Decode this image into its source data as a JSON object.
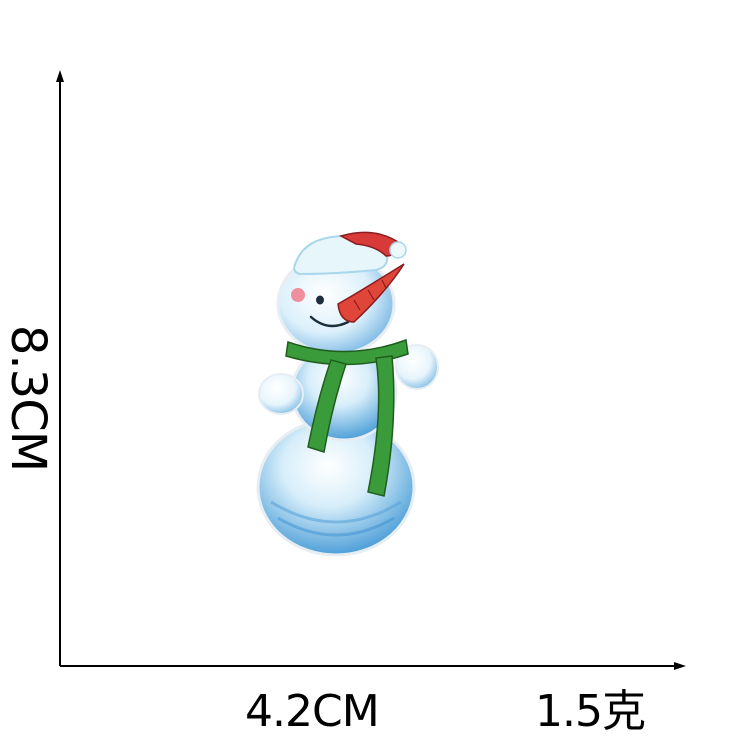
{
  "dimensions": {
    "height": "8.3CM",
    "width": "4.2CM",
    "weight": "1.5克"
  },
  "product": {
    "icon": "snowman-embroidered-patch"
  },
  "colors": {
    "background": "#ffffff",
    "axis": "#000000",
    "snow": "#dff1fb",
    "snow_shadow": "#5fa8de",
    "scarf": "#3a9b3a",
    "hat": "#d83a3a",
    "carrot": "#e0453a"
  }
}
